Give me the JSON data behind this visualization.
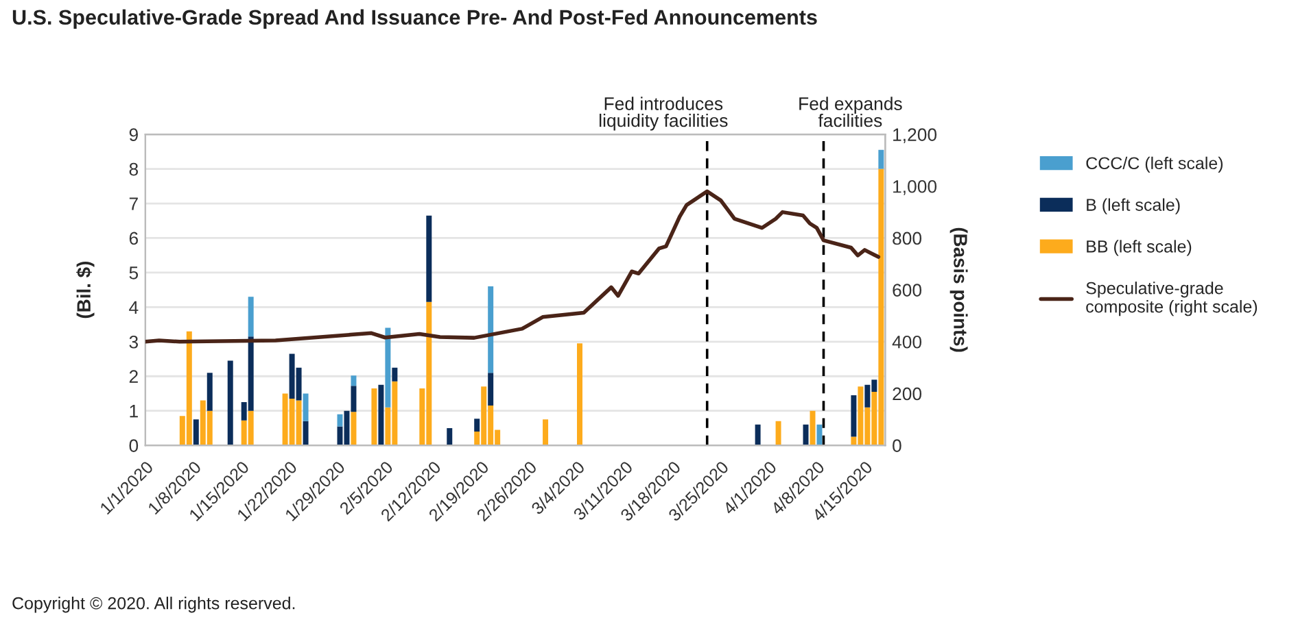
{
  "chart_data": {
    "type": "bar",
    "stacked": true,
    "title": "U.S. Speculative-Grade Spread And Issuance Pre- And Post-Fed Announcements",
    "ylabel": "(Bil. $)",
    "y2label": "(Basis points)",
    "x": [
      "2020-01-06",
      "2020-01-07",
      "2020-01-08",
      "2020-01-09",
      "2020-01-10",
      "2020-01-13",
      "2020-01-15",
      "2020-01-16",
      "2020-01-21",
      "2020-01-22",
      "2020-01-23",
      "2020-01-24",
      "2020-01-29",
      "2020-01-30",
      "2020-01-31",
      "2020-02-03",
      "2020-02-04",
      "2020-02-05",
      "2020-02-06",
      "2020-02-10",
      "2020-02-11",
      "2020-02-14",
      "2020-02-18",
      "2020-02-19",
      "2020-02-20",
      "2020-02-21",
      "2020-02-28",
      "2020-03-04",
      "2020-03-30",
      "2020-04-02",
      "2020-04-06",
      "2020-04-07",
      "2020-04-08",
      "2020-04-13",
      "2020-04-14",
      "2020-04-15",
      "2020-04-16",
      "2020-04-17"
    ],
    "series": [
      {
        "name": "BB (left scale)",
        "color": "#fdab1c",
        "values": [
          0.85,
          3.3,
          null,
          1.3,
          1.0,
          null,
          0.72,
          1.0,
          1.5,
          1.35,
          1.3,
          null,
          null,
          null,
          0.97,
          1.65,
          null,
          1.1,
          1.85,
          1.65,
          4.15,
          null,
          0.4,
          1.7,
          1.15,
          0.45,
          0.75,
          2.95,
          null,
          0.7,
          null,
          1.0,
          null,
          0.25,
          1.7,
          1.1,
          1.55,
          8.0
        ]
      },
      {
        "name": "B (left scale)",
        "color": "#0b2d5a",
        "values": [
          null,
          null,
          0.75,
          null,
          1.1,
          2.45,
          0.53,
          2.15,
          null,
          1.3,
          0.95,
          0.7,
          0.55,
          1.0,
          0.75,
          null,
          1.75,
          null,
          0.4,
          null,
          2.5,
          0.5,
          0.37,
          null,
          0.95,
          null,
          null,
          null,
          0.6,
          null,
          0.6,
          null,
          null,
          1.2,
          null,
          0.65,
          0.35,
          null
        ]
      },
      {
        "name": "CCC/C (left scale)",
        "color": "#4a9fcf",
        "values": [
          null,
          null,
          null,
          null,
          null,
          null,
          null,
          1.15,
          null,
          null,
          null,
          0.8,
          0.35,
          null,
          0.3,
          null,
          null,
          2.3,
          null,
          null,
          null,
          null,
          null,
          null,
          2.5,
          null,
          null,
          null,
          null,
          null,
          null,
          null,
          0.6,
          null,
          null,
          null,
          null,
          0.55
        ]
      },
      {
        "name": "Speculative-grade composite (right scale)",
        "type": "line",
        "axis": "y2",
        "color": "#4a2418",
        "x": [
          "2020-01-01",
          "2020-01-03",
          "2020-01-06",
          "2020-01-20",
          "2020-01-31",
          "2020-02-03",
          "2020-02-05",
          "2020-02-10",
          "2020-02-13",
          "2020-02-18",
          "2020-02-25",
          "2020-02-28",
          "2020-03-05",
          "2020-03-09",
          "2020-03-10",
          "2020-03-12",
          "2020-03-13",
          "2020-03-16",
          "2020-03-17",
          "2020-03-19",
          "2020-03-20",
          "2020-03-23",
          "2020-03-25",
          "2020-03-27",
          "2020-03-31",
          "2020-04-02",
          "2020-04-03",
          "2020-04-06",
          "2020-04-07",
          "2020-04-08",
          "2020-04-09",
          "2020-04-13",
          "2020-04-14",
          "2020-04-15",
          "2020-04-17"
        ],
        "values": [
          400,
          405,
          400,
          405,
          427,
          433,
          416,
          430,
          418,
          415,
          450,
          495,
          512,
          610,
          577,
          671,
          663,
          760,
          768,
          883,
          927,
          980,
          945,
          874,
          839,
          874,
          900,
          887,
          856,
          839,
          791,
          763,
          733,
          754,
          727
        ]
      }
    ],
    "xlim": [
      "2020-01-01",
      "2020-04-18"
    ],
    "xticks": [
      {
        "value": "2020-01-01",
        "label": "1/1/2020"
      },
      {
        "value": "2020-01-08",
        "label": "1/8/2020"
      },
      {
        "value": "2020-01-15",
        "label": "1/15/2020"
      },
      {
        "value": "2020-01-22",
        "label": "1/22/2020"
      },
      {
        "value": "2020-01-29",
        "label": "1/29/2020"
      },
      {
        "value": "2020-02-05",
        "label": "2/5/2020"
      },
      {
        "value": "2020-02-12",
        "label": "2/12/2020"
      },
      {
        "value": "2020-02-19",
        "label": "2/19/2020"
      },
      {
        "value": "2020-02-26",
        "label": "2/26/2020"
      },
      {
        "value": "2020-03-04",
        "label": "3/4/2020"
      },
      {
        "value": "2020-03-11",
        "label": "3/11/2020"
      },
      {
        "value": "2020-03-18",
        "label": "3/18/2020"
      },
      {
        "value": "2020-03-25",
        "label": "3/25/2020"
      },
      {
        "value": "2020-04-01",
        "label": "4/1/2020"
      },
      {
        "value": "2020-04-08",
        "label": "4/8/2020"
      },
      {
        "value": "2020-04-15",
        "label": "4/15/2020"
      }
    ],
    "ylim": [
      0,
      9
    ],
    "yticks": [
      0,
      1,
      2,
      3,
      4,
      5,
      6,
      7,
      8,
      9
    ],
    "y2lim": [
      0,
      1200
    ],
    "y2ticks": [
      0,
      200,
      400,
      600,
      800,
      {
        "value": 1000,
        "label": "1,000"
      },
      {
        "value": 1200,
        "label": "1,200"
      }
    ],
    "ref_lines": [
      {
        "axis": "x",
        "value": "2020-03-23",
        "label": "Fed introduces\nliquidity facilities",
        "color": "#000000",
        "line_style": "dashed"
      },
      {
        "axis": "x",
        "value": "2020-04-09",
        "label": "Fed expands\nfacilities",
        "color": "#000000",
        "line_style": "dashed"
      }
    ],
    "grid": "y",
    "legend": "right",
    "annotations": [
      "Copyright © 2020. All rights reserved."
    ]
  }
}
